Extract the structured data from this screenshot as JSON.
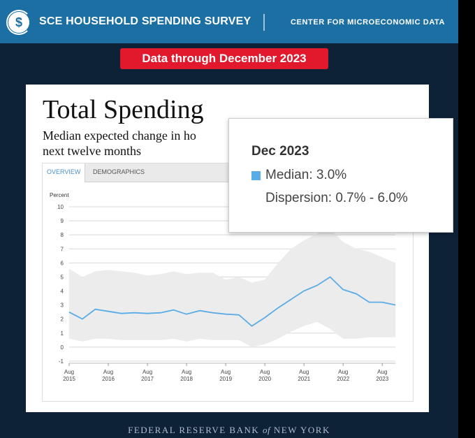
{
  "header": {
    "title": "SCE HOUSEHOLD SPENDING SURVEY",
    "center": "CENTER FOR MICROECONOMIC DATA",
    "logo_glyph": "$"
  },
  "badge": "Data through December 2023",
  "card": {
    "title": "Total Spending",
    "subtitle": "Median expected change in ho… next twelve months",
    "subtitle_line1": "Median expected change in ho",
    "subtitle_line2": "next twelve months",
    "tabs": [
      "OVERVIEW",
      "DEMOGRAPHICS"
    ]
  },
  "tooltip": {
    "date": "Dec 2023",
    "median": "Median: 3.0%",
    "dispersion": "Dispersion: 0.7% - 6.0%"
  },
  "footer": {
    "left": "FEDERAL RESERVE BANK",
    "of": "of",
    "right": "NEW YORK"
  },
  "colors": {
    "median_line": "#5aace6",
    "band": "#ececec",
    "badge": "#e2182d",
    "header": "#1b6fa3"
  },
  "chart_data": {
    "type": "line",
    "ylabel": "Percent",
    "ylim": [
      -1,
      10
    ],
    "yticks": [
      -1,
      0,
      1,
      2,
      3,
      4,
      5,
      6,
      7,
      8,
      9,
      10
    ],
    "x_tick_labels": [
      {
        "month": "Aug",
        "year": "2015"
      },
      {
        "month": "Aug",
        "year": "2016"
      },
      {
        "month": "Aug",
        "year": "2017"
      },
      {
        "month": "Aug",
        "year": "2018"
      },
      {
        "month": "Aug",
        "year": "2019"
      },
      {
        "month": "Aug",
        "year": "2020"
      },
      {
        "month": "Aug",
        "year": "2021"
      },
      {
        "month": "Aug",
        "year": "2022"
      },
      {
        "month": "Aug",
        "year": "2023"
      }
    ],
    "x_start": 2015.583,
    "x_end": 2023.917,
    "series": [
      {
        "name": "Median",
        "points": [
          [
            2015.58,
            2.5
          ],
          [
            2015.92,
            2.0
          ],
          [
            2016.25,
            2.7
          ],
          [
            2016.58,
            2.55
          ],
          [
            2016.92,
            2.4
          ],
          [
            2017.25,
            2.45
          ],
          [
            2017.58,
            2.4
          ],
          [
            2017.92,
            2.45
          ],
          [
            2018.25,
            2.65
          ],
          [
            2018.58,
            2.35
          ],
          [
            2018.92,
            2.6
          ],
          [
            2019.25,
            2.45
          ],
          [
            2019.58,
            2.35
          ],
          [
            2019.92,
            2.3
          ],
          [
            2020.25,
            1.5
          ],
          [
            2020.58,
            2.1
          ],
          [
            2020.92,
            2.8
          ],
          [
            2021.25,
            3.4
          ],
          [
            2021.58,
            4.0
          ],
          [
            2021.92,
            4.4
          ],
          [
            2022.25,
            5.0
          ],
          [
            2022.58,
            4.1
          ],
          [
            2022.92,
            3.8
          ],
          [
            2023.25,
            3.2
          ],
          [
            2023.58,
            3.2
          ],
          [
            2023.92,
            3.0
          ]
        ]
      }
    ],
    "band": {
      "name": "Dispersion",
      "upper": [
        [
          2015.58,
          5.6
        ],
        [
          2015.92,
          5.0
        ],
        [
          2016.25,
          5.4
        ],
        [
          2016.58,
          5.5
        ],
        [
          2016.92,
          5.4
        ],
        [
          2017.25,
          5.3
        ],
        [
          2017.58,
          5.1
        ],
        [
          2017.92,
          5.2
        ],
        [
          2018.25,
          5.4
        ],
        [
          2018.58,
          5.2
        ],
        [
          2018.92,
          5.3
        ],
        [
          2019.25,
          5.3
        ],
        [
          2019.58,
          4.8
        ],
        [
          2019.92,
          5.0
        ],
        [
          2020.25,
          4.6
        ],
        [
          2020.58,
          4.8
        ],
        [
          2020.92,
          6.0
        ],
        [
          2021.25,
          7.0
        ],
        [
          2021.58,
          7.6
        ],
        [
          2021.92,
          8.1
        ],
        [
          2022.25,
          8.4
        ],
        [
          2022.58,
          7.5
        ],
        [
          2022.92,
          7.0
        ],
        [
          2023.25,
          6.8
        ],
        [
          2023.58,
          6.4
        ],
        [
          2023.92,
          6.0
        ]
      ],
      "lower": [
        [
          2015.58,
          0.6
        ],
        [
          2015.92,
          0.4
        ],
        [
          2016.25,
          0.6
        ],
        [
          2016.58,
          0.6
        ],
        [
          2016.92,
          0.5
        ],
        [
          2017.25,
          0.5
        ],
        [
          2017.58,
          0.5
        ],
        [
          2017.92,
          0.5
        ],
        [
          2018.25,
          0.6
        ],
        [
          2018.58,
          0.4
        ],
        [
          2018.92,
          0.6
        ],
        [
          2019.25,
          0.5
        ],
        [
          2019.58,
          0.5
        ],
        [
          2019.92,
          0.5
        ],
        [
          2020.25,
          0.0
        ],
        [
          2020.58,
          0.2
        ],
        [
          2020.92,
          0.6
        ],
        [
          2021.25,
          1.1
        ],
        [
          2021.58,
          1.5
        ],
        [
          2021.92,
          1.8
        ],
        [
          2022.25,
          1.3
        ],
        [
          2022.58,
          0.6
        ],
        [
          2022.92,
          0.6
        ],
        [
          2023.25,
          0.7
        ],
        [
          2023.58,
          0.7
        ],
        [
          2023.92,
          0.7
        ]
      ]
    }
  }
}
